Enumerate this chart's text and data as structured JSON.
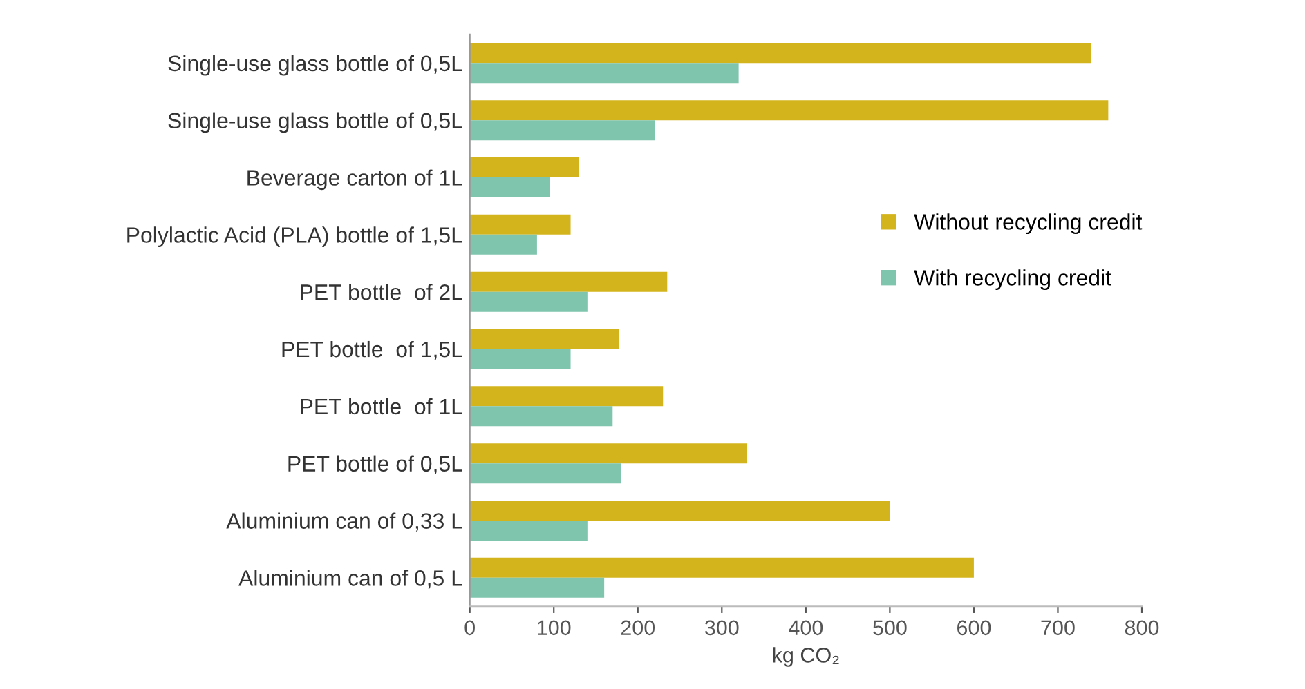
{
  "chart_data": {
    "type": "bar",
    "orientation": "horizontal",
    "xlabel": "kg CO₂",
    "categories": [
      "Single-use glass bottle of 0,5L",
      "Single-use glass bottle of 0,5L",
      "Beverage carton of 1L",
      "Polylactic Acid (PLA) bottle of 1,5L",
      "PET bottle  of 2L",
      "PET bottle  of 1,5L",
      "PET bottle  of 1L",
      "PET bottle of 0,5L",
      "Aluminium can of 0,33 L",
      "Aluminium can of 0,5 L"
    ],
    "series": [
      {
        "name": "Without recycling credit",
        "color": "#d4b41c",
        "values": [
          740,
          760,
          130,
          120,
          235,
          178,
          230,
          330,
          500,
          600
        ]
      },
      {
        "name": "With recycling credit",
        "color": "#7fc4ad",
        "values": [
          320,
          220,
          95,
          80,
          140,
          120,
          170,
          180,
          140,
          160
        ]
      }
    ],
    "xlim": [
      0,
      800
    ],
    "xticks": [
      0,
      100,
      200,
      300,
      400,
      500,
      600,
      700,
      800
    ],
    "grid": false,
    "legend": "right"
  }
}
